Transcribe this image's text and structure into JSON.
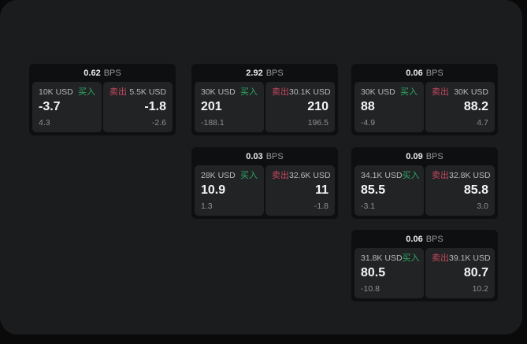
{
  "page": {
    "bps_unit": "BPS",
    "buy_label": "买入",
    "sell_label": "卖出"
  },
  "colors": {
    "page_bg": "#0a0a0b",
    "panel_bg": "#1b1c1d",
    "card_bg": "#0e0f10",
    "tile_bg": "#212325",
    "buy_green": "#2fa963",
    "sell_red": "#c4495f",
    "value_white": "#f4f4f5",
    "muted_gray": "#8d8f92"
  },
  "cards": [
    {
      "bps": "0.62",
      "buy": {
        "amount": "10K USD",
        "value": "-3.7",
        "sub": "4.3"
      },
      "sell": {
        "amount": "5.5K USD",
        "value": "-1.8",
        "sub": "-2.6"
      }
    },
    {
      "bps": "2.92",
      "buy": {
        "amount": "30K USD",
        "value": "201",
        "sub": "-188.1"
      },
      "sell": {
        "amount": "30.1K USD",
        "value": "210",
        "sub": "196.5"
      }
    },
    {
      "bps": "0.06",
      "buy": {
        "amount": "30K USD",
        "value": "88",
        "sub": "-4.9"
      },
      "sell": {
        "amount": "30K USD",
        "value": "88.2",
        "sub": "4.7"
      }
    },
    {
      "bps": "0.03",
      "buy": {
        "amount": "28K USD",
        "value": "10.9",
        "sub": "1.3"
      },
      "sell": {
        "amount": "32.6K USD",
        "value": "11",
        "sub": "-1.8"
      }
    },
    {
      "bps": "0.09",
      "buy": {
        "amount": "34.1K USD",
        "value": "85.5",
        "sub": "-3.1"
      },
      "sell": {
        "amount": "32.8K USD",
        "value": "85.8",
        "sub": "3.0"
      }
    },
    {
      "bps": "0.06",
      "buy": {
        "amount": "31.8K USD",
        "value": "80.5",
        "sub": "-10.8"
      },
      "sell": {
        "amount": "39.1K USD",
        "value": "80.7",
        "sub": "10.2"
      }
    }
  ]
}
